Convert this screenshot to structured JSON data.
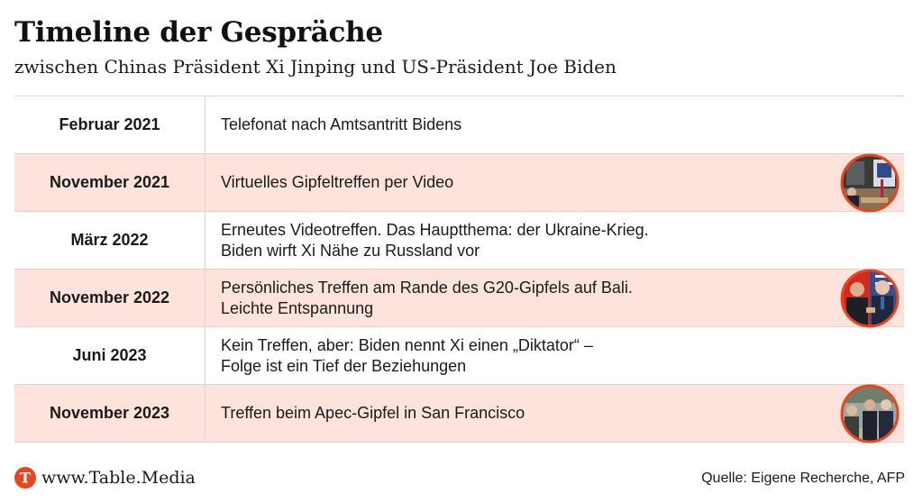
{
  "header": {
    "title": "Timeline der Gespräche",
    "subtitle": "zwischen Chinas Präsident Xi Jinping und US-Präsident Joe Biden"
  },
  "chart_data": {
    "type": "table",
    "rows": [
      {
        "date": "Februar 2021",
        "event": [
          "Telefonat nach Amtsantritt Bidens"
        ],
        "photo": null
      },
      {
        "date": "November 2021",
        "event": [
          "Virtuelles Gipfeltreffen per Video"
        ],
        "photo": "video-meeting-photo"
      },
      {
        "date": "März 2022",
        "event": [
          "Erneutes Videotreffen. Das Hauptthema: der Ukraine-Krieg.",
          "Biden wirft Xi Nähe zu Russland vor"
        ],
        "photo": null
      },
      {
        "date": "November 2022",
        "event": [
          "Persönliches Treffen am Rande des G20-Gipfels auf Bali.",
          "Leichte Entspannung"
        ],
        "photo": "handshake-photo"
      },
      {
        "date": "Juni 2023",
        "event": [
          "Kein Treffen, aber: Biden nennt Xi einen „Diktator“ –",
          "Folge ist ein Tief der Beziehungen"
        ],
        "photo": null
      },
      {
        "date": "November 2023",
        "event": [
          "Treffen beim Apec-Gipfel in San Francisco"
        ],
        "photo": "apec-walk-photo"
      }
    ]
  },
  "footer": {
    "logo_letter": "T",
    "url": "www.Table.Media",
    "source": "Quelle: Eigene Recherche, AFP"
  },
  "colors": {
    "shaded_row": "#fde3dc",
    "accent": "#e8461e",
    "divider": "#d6d6d6"
  }
}
